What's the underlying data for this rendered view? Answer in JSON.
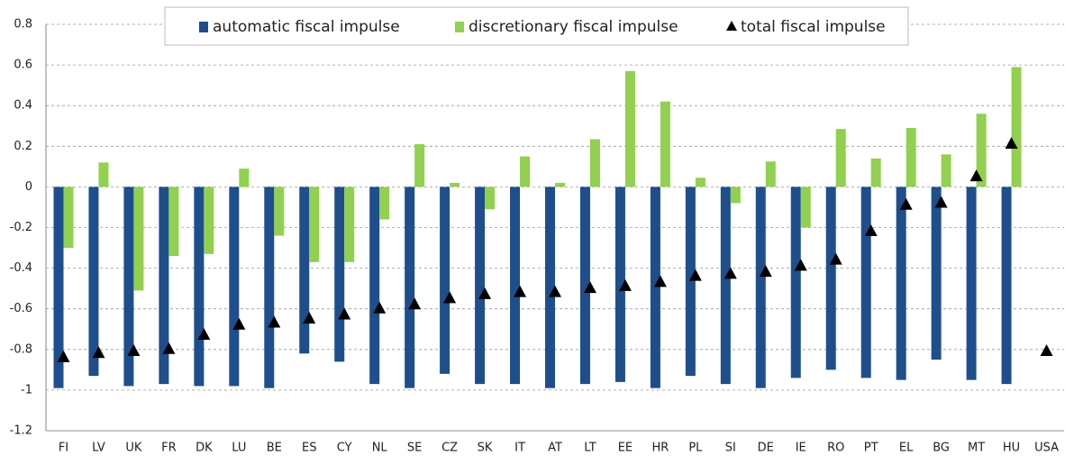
{
  "chart_data": {
    "type": "bar",
    "categories": [
      "FI",
      "LV",
      "UK",
      "FR",
      "DK",
      "LU",
      "BE",
      "ES",
      "CY",
      "NL",
      "SE",
      "CZ",
      "SK",
      "IT",
      "AT",
      "LT",
      "EE",
      "HR",
      "PL",
      "SI",
      "DE",
      "IE",
      "RO",
      "PT",
      "EL",
      "BG",
      "MT",
      "HU",
      "USA"
    ],
    "series": [
      {
        "name": "automatic fiscal impulse",
        "color": "#1f4e8c",
        "kind": "bar",
        "values": [
          -0.99,
          -0.93,
          -0.98,
          -0.97,
          -0.98,
          -0.98,
          -0.99,
          -0.82,
          -0.86,
          -0.97,
          -0.99,
          -0.92,
          -0.97,
          -0.97,
          -0.99,
          -0.97,
          -0.96,
          -0.99,
          -0.93,
          -0.97,
          -0.99,
          -0.94,
          -0.9,
          -0.94,
          -0.95,
          -0.85,
          -0.95,
          -0.97,
          null
        ]
      },
      {
        "name": "discretionary fiscal impulse",
        "color": "#92d050",
        "kind": "bar",
        "values": [
          -0.3,
          0.12,
          -0.51,
          -0.34,
          -0.33,
          0.09,
          -0.24,
          -0.37,
          -0.37,
          -0.16,
          0.21,
          0.02,
          -0.11,
          0.15,
          0.02,
          0.235,
          0.57,
          0.42,
          0.045,
          -0.08,
          0.125,
          -0.2,
          0.285,
          0.14,
          0.29,
          0.16,
          0.36,
          0.59,
          null
        ]
      },
      {
        "name": "total fiscal impulse",
        "color": "#000000",
        "kind": "marker",
        "values": [
          -0.84,
          -0.82,
          -0.81,
          -0.8,
          -0.73,
          -0.68,
          -0.67,
          -0.65,
          -0.63,
          -0.6,
          -0.58,
          -0.55,
          -0.53,
          -0.52,
          -0.52,
          -0.5,
          -0.49,
          -0.47,
          -0.44,
          -0.43,
          -0.42,
          -0.39,
          -0.36,
          -0.22,
          -0.09,
          -0.08,
          0.05,
          0.21,
          -0.81
        ]
      }
    ],
    "ylim": [
      -1.2,
      0.8
    ],
    "yticks": [
      0.8,
      0.6,
      0.4,
      0.2,
      0,
      -0.2,
      -0.4,
      -0.6,
      -0.8,
      -1,
      -1.2
    ],
    "grid": true
  }
}
